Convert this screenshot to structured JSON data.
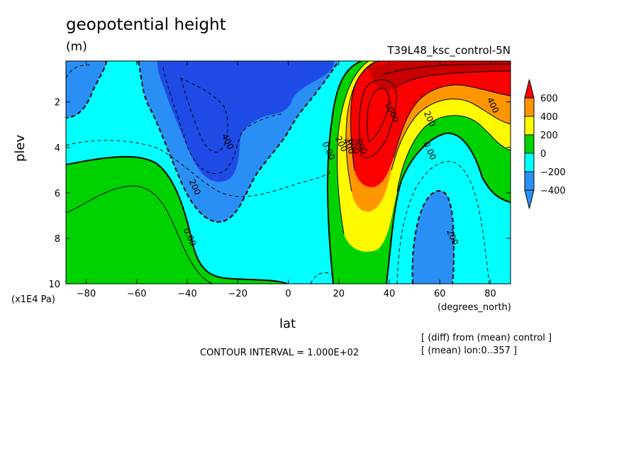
{
  "header": {
    "title": "geopotential height",
    "units": "(m)",
    "run_name": "T39L48_ksc_control-5N"
  },
  "axes": {
    "xlabel": "lat",
    "xunit": "(degrees_north)",
    "ylabel": "plev",
    "yunit": "(x1E4 Pa)"
  },
  "footer": {
    "contour_interval": "CONTOUR INTERVAL = 1.000E+02",
    "note_diff": "[ (diff) from (mean) control ]",
    "note_mean": "[ (mean) lon:0..357 ]"
  },
  "colors": {
    "lt_-400": "#2a8ff5",
    "-400_-200": "#2a8ff5",
    "-200_0": "#00ffff",
    "0_200": "#00d200",
    "200_400": "#fffa00",
    "400_600": "#ff9600",
    "gt_600": "#fa0000",
    "deep_blue": "#1e4be6"
  },
  "chart_data": {
    "type": "contour",
    "title": "geopotential height",
    "units": "(m)",
    "xlabel": "lat",
    "ylabel": "plev",
    "xlim": [
      -88,
      88
    ],
    "ylim": [
      10,
      0.2
    ],
    "x_ticks": [
      -80,
      -60,
      -40,
      -20,
      0,
      20,
      40,
      60,
      80
    ],
    "y_ticks": [
      2,
      4,
      6,
      8,
      10
    ],
    "contour_interval": 100,
    "colorbar": {
      "levels": [
        -400,
        -200,
        0,
        200,
        400,
        600
      ],
      "labels": [
        "600",
        "400",
        "200",
        "0",
        "-200",
        "-400"
      ]
    },
    "contour_labels": [
      {
        "text": "1000",
        "lat": 40,
        "plev": 2.5
      },
      {
        "text": "400",
        "lat": 80,
        "plev": 2.2
      },
      {
        "text": "200",
        "lat": 55,
        "plev": 2.8
      },
      {
        "text": "0.00",
        "lat": 55,
        "plev": 4.2
      },
      {
        "text": "200",
        "lat": 64,
        "plev": 8.0
      },
      {
        "text": "0.00",
        "lat": 15,
        "plev": 4.2
      },
      {
        "text": "200",
        "lat": 20,
        "plev": 3.9
      },
      {
        "text": "400",
        "lat": 23,
        "plev": 4.0
      },
      {
        "text": "600",
        "lat": 25,
        "plev": 4.0
      },
      {
        "text": "800",
        "lat": 28,
        "plev": 4.0
      },
      {
        "text": "400",
        "lat": -25,
        "plev": 3.8
      },
      {
        "text": "200",
        "lat": -38,
        "plev": 5.8
      },
      {
        "text": "0.00",
        "lat": -40,
        "plev": 8.0
      }
    ]
  }
}
